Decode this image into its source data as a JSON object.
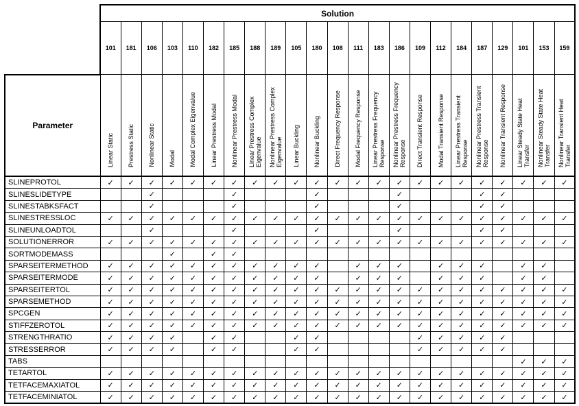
{
  "header": {
    "group": "Solution",
    "parameter": "Parameter"
  },
  "check_glyph": "✓",
  "solutions": [
    {
      "num": "101",
      "name": "Linear Static"
    },
    {
      "num": "181",
      "name": "Prestress Static"
    },
    {
      "num": "106",
      "name": "Nonlinear Static"
    },
    {
      "num": "103",
      "name": "Modal"
    },
    {
      "num": "110",
      "name": "Modal Complex Eigenvalue"
    },
    {
      "num": "182",
      "name": "Linear Prestress Modal"
    },
    {
      "num": "185",
      "name": "Nonlinear Prestress Modal"
    },
    {
      "num": "188",
      "name": "Linear Prestress Complex Eigenvalue"
    },
    {
      "num": "189",
      "name": "Nonlinear Prestress Complex Eigenvalue"
    },
    {
      "num": "105",
      "name": "Linear Buckling"
    },
    {
      "num": "180",
      "name": "Nonlinear Buckling"
    },
    {
      "num": "108",
      "name": "Direct Frequency Response"
    },
    {
      "num": "111",
      "name": "Modal Frequency Response"
    },
    {
      "num": "183",
      "name": "Linear Prestress Frequency Response"
    },
    {
      "num": "186",
      "name": "Nonlinear Prestress Frequency Response"
    },
    {
      "num": "109",
      "name": "Direct Transient Response"
    },
    {
      "num": "112",
      "name": "Modal Transient Response"
    },
    {
      "num": "184",
      "name": "Linear Prestress Transient Response"
    },
    {
      "num": "187",
      "name": "Nonlinear Prestress Transient Response"
    },
    {
      "num": "129",
      "name": "Nonlinear Transient Response"
    },
    {
      "num": "101",
      "name": "Linear Steady State Heat Transfer"
    },
    {
      "num": "153",
      "name": "Nonlinear Steady State Heat Transfer"
    },
    {
      "num": "159",
      "name": "Nonlinear Transient Heat Transfer"
    }
  ],
  "rows": [
    {
      "param": "SLINEPROTOL",
      "checks": "11111111111111111111111"
    },
    {
      "param": "SLINESLIDETYPE",
      "checks": "00100010001000100011000"
    },
    {
      "param": "SLINESTABKSFACT",
      "checks": "00100010001000100011000"
    },
    {
      "param": "SLINESTRESSLOC",
      "checks": "11111111111111111111111"
    },
    {
      "param": "SLINEUNLOADTOL",
      "checks": "00100010001000100011000"
    },
    {
      "param": "SOLUTIONERROR",
      "checks": "11111111111111111111111"
    },
    {
      "param": "SORTMODEMASS",
      "checks": "00010110000000000000000"
    },
    {
      "param": "SPARSEITERMETHOD",
      "checks": "11111111111011101110110"
    },
    {
      "param": "SPARSEITERMODE",
      "checks": "11111111111011101110110"
    },
    {
      "param": "SPARSEITERTOL",
      "checks": "11111111111111111111111"
    },
    {
      "param": "SPARSEMETHOD",
      "checks": "11111111111111111111111"
    },
    {
      "param": "SPCGEN",
      "checks": "11111111111111111111111"
    },
    {
      "param": "STIFFZEROTOL",
      "checks": "11111111111111111111111"
    },
    {
      "param": "STRENGTHRATIO",
      "checks": "11110110011000011111000"
    },
    {
      "param": "STRESSERROR",
      "checks": "11110110011000011111000"
    },
    {
      "param": "TABS",
      "checks": "00000000000000000000111"
    },
    {
      "param": "TETARTOL",
      "checks": "11111111111111111111111"
    },
    {
      "param": "TETFACEMAXIATOL",
      "checks": "11111111111111111111111"
    },
    {
      "param": "TETFACEMINIATOL",
      "checks": "11111111111111111111111"
    }
  ]
}
